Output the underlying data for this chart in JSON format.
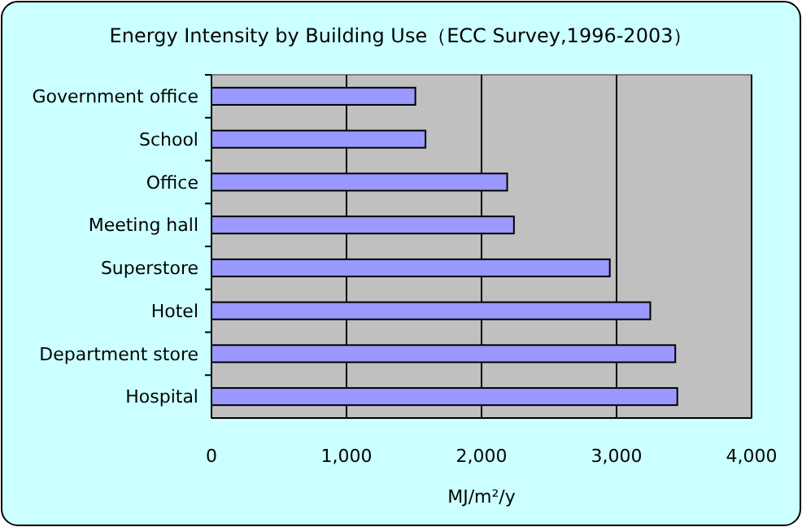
{
  "chart_data": {
    "type": "bar",
    "orientation": "horizontal",
    "title": "Energy Intensity by Building Use（ECC Survey,1996-2003）",
    "xlabel": "MJ/m²/y",
    "categories": [
      "Government office",
      "School",
      "Office",
      "Meeting hall",
      "Superstore",
      "Hotel",
      "Department store",
      "Hospital"
    ],
    "values": [
      1510,
      1585,
      2190,
      2240,
      2950,
      3250,
      3435,
      3450
    ],
    "color": "#9999ff",
    "xlim": [
      0,
      4000
    ],
    "xticks": [
      0,
      {
        "value": 1000,
        "label": "1,000"
      },
      {
        "value": 2000,
        "label": "2,000"
      },
      {
        "value": 3000,
        "label": "3,000"
      },
      {
        "value": 4000,
        "label": "4,000"
      }
    ],
    "grid": "x"
  }
}
